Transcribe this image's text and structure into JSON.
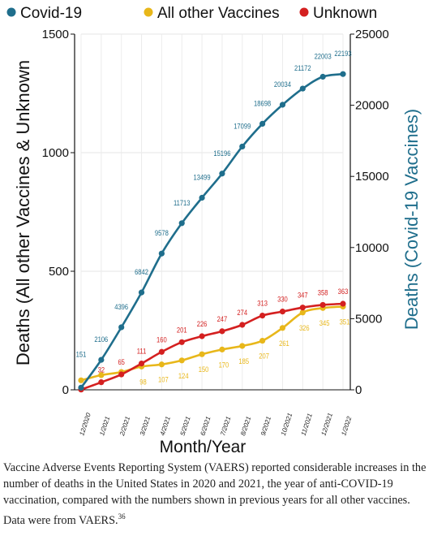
{
  "chart_data": {
    "type": "line",
    "categories": [
      "12/2020",
      "1/2021",
      "2/2021",
      "3/2021",
      "4/2021",
      "5/2021",
      "6/2021",
      "7/2021",
      "8/2021",
      "9/2021",
      "10/2021",
      "11/2021",
      "12/2021",
      "1/2022"
    ],
    "series": [
      {
        "name": "Covid-19",
        "axis": "right",
        "color": "#1f6e8c",
        "values": [
          151,
          2106,
          4396,
          6842,
          9578,
          11713,
          13499,
          15196,
          17099,
          18698,
          20034,
          21172,
          22003,
          22193
        ]
      },
      {
        "name": "All other Vaccines",
        "axis": "left",
        "color": "#e8b71a",
        "values": [
          40,
          62,
          75,
          98,
          107,
          124,
          150,
          170,
          185,
          207,
          261,
          326,
          345,
          351
        ],
        "labels": [
          null,
          null,
          null,
          98,
          107,
          124,
          150,
          170,
          185,
          207,
          261,
          326,
          345,
          351
        ]
      },
      {
        "name": "Unknown",
        "axis": "left",
        "color": "#d42020",
        "values": [
          1,
          32,
          65,
          111,
          160,
          201,
          226,
          247,
          274,
          313,
          330,
          347,
          358,
          363
        ]
      }
    ],
    "xlabel": "Month/Year",
    "ylabel": "Deaths (All other Vaccines & Unknown",
    "y2label": "Deaths (Covid-19 Vaccines)",
    "ylim": [
      0,
      1500
    ],
    "y2lim": [
      0,
      25000
    ],
    "yticks": [
      0,
      500,
      1000,
      1500
    ],
    "y2ticks": [
      0,
      5000,
      10000,
      15000,
      20000,
      25000
    ],
    "legend_position": "top"
  },
  "caption": {
    "text": "Vaccine Adverse Events Reporting System (VAERS) reported considerable increases in the number of deaths in the United States in 2020 and 2021, the year of anti-COVID-19 vaccination, compared with the numbers shown in previous years for all other vaccines. Data were from VAERS.",
    "ref": "36"
  }
}
